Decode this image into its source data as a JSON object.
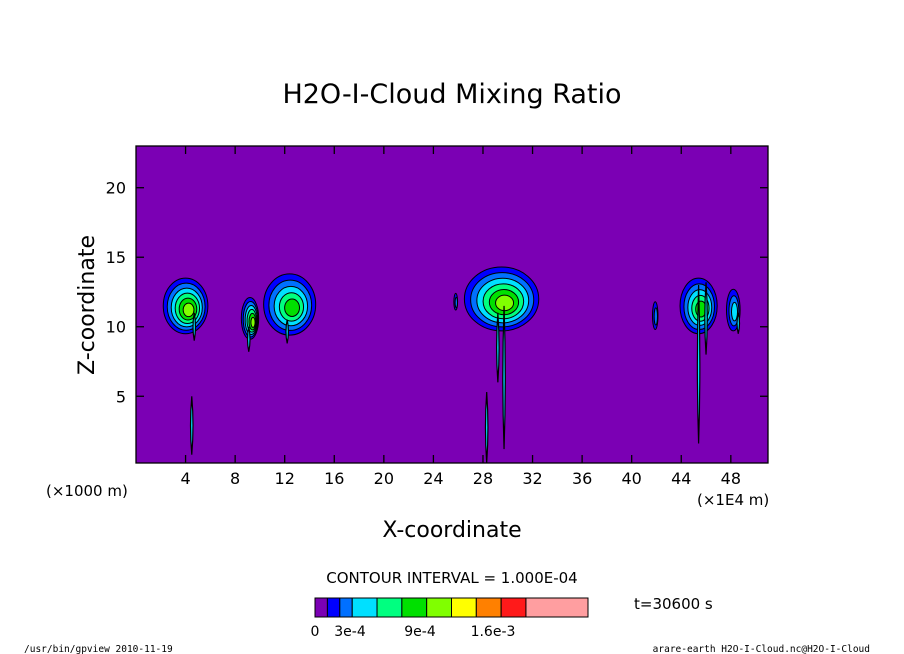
{
  "chart_data": {
    "type": "contour",
    "title": "H2O-I-Cloud Mixing Ratio",
    "xlabel": "X-coordinate",
    "ylabel": "Z-coordinate",
    "x_unit_left": "(×1000 m)",
    "x_unit_right": "(×1E4 m)",
    "xlim": [
      0,
      51
    ],
    "ylim": [
      0.2,
      23
    ],
    "x_ticks": [
      4,
      8,
      12,
      16,
      20,
      24,
      28,
      32,
      36,
      40,
      44,
      48
    ],
    "y_ticks": [
      5,
      10,
      15,
      20
    ],
    "contour_interval": "CONTOUR INTERVAL = 1.000E-04",
    "time_label": "t=30600 s",
    "colorbar_labels": [
      "0",
      "3e-4",
      "9e-4",
      "1.6e-3"
    ],
    "colorbar_levels": [
      0,
      0.0001,
      0.0002,
      0.0003,
      0.0004,
      0.0006,
      0.0009,
      0.0012,
      0.0014,
      0.0016,
      0.002,
      0.003
    ],
    "colors": [
      "#7b00b4",
      "#0000ff",
      "#0070ff",
      "#00e0ff",
      "#00ff80",
      "#00e000",
      "#80ff00",
      "#ffff00",
      "#ff8000",
      "#ff1a1a",
      "#ff9ea0"
    ],
    "clouds": [
      {
        "x": 4.0,
        "z": 11.5,
        "rx": 1.8,
        "rz": 2.0,
        "levels": [
          1,
          2,
          3,
          4,
          5,
          6
        ]
      },
      {
        "x": 9.2,
        "z": 10.6,
        "rx": 0.7,
        "rz": 1.5,
        "levels": [
          1,
          2,
          3,
          4,
          5,
          6
        ]
      },
      {
        "x": 12.4,
        "z": 11.6,
        "rx": 2.1,
        "rz": 2.2,
        "levels": [
          1,
          2,
          3,
          4,
          5
        ]
      },
      {
        "x": 25.8,
        "z": 11.8,
        "rx": 0.15,
        "rz": 0.6,
        "levels": [
          1,
          2
        ]
      },
      {
        "x": 29.5,
        "z": 12.0,
        "rx": 3.0,
        "rz": 2.3,
        "levels": [
          1,
          2,
          3,
          4,
          5,
          6
        ]
      },
      {
        "x": 41.9,
        "z": 10.8,
        "rx": 0.22,
        "rz": 1.0,
        "levels": [
          1,
          2
        ]
      },
      {
        "x": 45.4,
        "z": 11.5,
        "rx": 1.5,
        "rz": 2.0,
        "levels": [
          1,
          2,
          3,
          4,
          5
        ]
      },
      {
        "x": 48.2,
        "z": 11.2,
        "rx": 0.55,
        "rz": 1.5,
        "levels": [
          1,
          2,
          3
        ]
      }
    ],
    "stems": [
      {
        "x": 4.5,
        "z0": 0.8,
        "z1": 5.0
      },
      {
        "x": 4.7,
        "z0": 9.0,
        "z1": 11.0
      },
      {
        "x": 9.1,
        "z0": 8.2,
        "z1": 10.0
      },
      {
        "x": 12.2,
        "z0": 8.8,
        "z1": 10.5
      },
      {
        "x": 28.3,
        "z0": 0.2,
        "z1": 5.3
      },
      {
        "x": 29.2,
        "z0": 6.0,
        "z1": 11.0
      },
      {
        "x": 29.7,
        "z0": 1.2,
        "z1": 11.5
      },
      {
        "x": 45.4,
        "z0": 1.6,
        "z1": 13.0
      },
      {
        "x": 46.0,
        "z0": 8.0,
        "z1": 13.2
      },
      {
        "x": 48.6,
        "z0": 9.5,
        "z1": 11.0
      }
    ]
  },
  "footer": {
    "left": "/usr/bin/gpview   2010-11-19",
    "right": "arare-earth_H2O-I-Cloud.nc@H2O-I-Cloud"
  }
}
